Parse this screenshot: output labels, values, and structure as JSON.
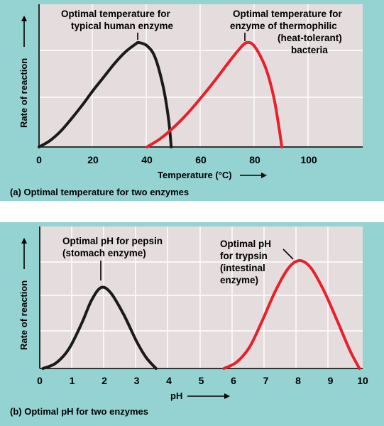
{
  "chart_data": [
    {
      "type": "line",
      "title": "",
      "caption": "(a) Optimal temperature for two enzymes",
      "xlabel": "Temperature (°C)",
      "ylabel": "Rate of reaction",
      "xlim": [
        0,
        120
      ],
      "x_ticks": [
        "0",
        "20",
        "40",
        "60",
        "80",
        "100"
      ],
      "x_tick_values": [
        0,
        20,
        40,
        60,
        80,
        100
      ],
      "y_shows_values": false,
      "grid": true,
      "series": [
        {
          "color": "#1a1a1a",
          "points": [
            [
              0,
              0
            ],
            [
              4,
              0.06
            ],
            [
              8,
              0.15
            ],
            [
              12,
              0.27
            ],
            [
              16,
              0.4
            ],
            [
              20,
              0.54
            ],
            [
              24,
              0.67
            ],
            [
              28,
              0.8
            ],
            [
              32,
              0.91
            ],
            [
              36,
              0.99
            ],
            [
              37,
              1.0
            ],
            [
              40,
              0.97
            ],
            [
              43,
              0.86
            ],
            [
              46,
              0.58
            ],
            [
              48,
              0.27
            ],
            [
              49,
              0
            ]
          ]
        },
        {
          "color": "#e8202a",
          "points": [
            [
              40,
              0
            ],
            [
              45,
              0.08
            ],
            [
              50,
              0.19
            ],
            [
              55,
              0.32
            ],
            [
              60,
              0.47
            ],
            [
              65,
              0.63
            ],
            [
              70,
              0.8
            ],
            [
              74,
              0.93
            ],
            [
              77,
              1.0
            ],
            [
              80,
              0.96
            ],
            [
              84,
              0.76
            ],
            [
              87,
              0.48
            ],
            [
              89,
              0.18
            ],
            [
              90,
              0
            ]
          ]
        }
      ],
      "annotations": [
        {
          "lines": [
            "Optimal temperature for",
            "typical human enzyme"
          ],
          "x": 37
        },
        {
          "lines": [
            "Optimal temperature for",
            "enzyme of thermophilic",
            "(heat-tolerant)",
            "bacteria"
          ],
          "x": 77
        }
      ]
    },
    {
      "type": "line",
      "title": "",
      "caption": "(b) Optimal pH for two enzymes",
      "xlabel": "pH",
      "ylabel": "Rate of reaction",
      "xlim": [
        0,
        10
      ],
      "x_ticks": [
        "0",
        "1",
        "2",
        "3",
        "4",
        "5",
        "6",
        "7",
        "8",
        "9",
        "10"
      ],
      "x_tick_values": [
        0,
        1,
        2,
        3,
        4,
        5,
        6,
        7,
        8,
        9,
        10
      ],
      "y_shows_values": false,
      "grid": true,
      "series": [
        {
          "color": "#1a1a1a",
          "points": [
            [
              0.1,
              0
            ],
            [
              0.5,
              0.05
            ],
            [
              0.9,
              0.18
            ],
            [
              1.3,
              0.42
            ],
            [
              1.6,
              0.63
            ],
            [
              1.9,
              0.75
            ],
            [
              2.2,
              0.7
            ],
            [
              2.6,
              0.5
            ],
            [
              3.0,
              0.25
            ],
            [
              3.3,
              0.1
            ],
            [
              3.6,
              0
            ]
          ]
        },
        {
          "color": "#e8202a",
          "points": [
            [
              5.7,
              0
            ],
            [
              6.1,
              0.06
            ],
            [
              6.5,
              0.2
            ],
            [
              6.9,
              0.45
            ],
            [
              7.3,
              0.72
            ],
            [
              7.7,
              0.93
            ],
            [
              8.05,
              1.0
            ],
            [
              8.4,
              0.93
            ],
            [
              8.8,
              0.72
            ],
            [
              9.2,
              0.45
            ],
            [
              9.6,
              0.17
            ],
            [
              9.9,
              0
            ]
          ]
        }
      ],
      "annotations": [
        {
          "lines": [
            "Optimal pH for pepsin",
            "(stomach enzyme)"
          ],
          "x": 1.9
        },
        {
          "lines": [
            "Optimal pH",
            "for trypsin",
            "(intestinal",
            "enzyme)"
          ],
          "x": 8.05
        }
      ]
    }
  ]
}
